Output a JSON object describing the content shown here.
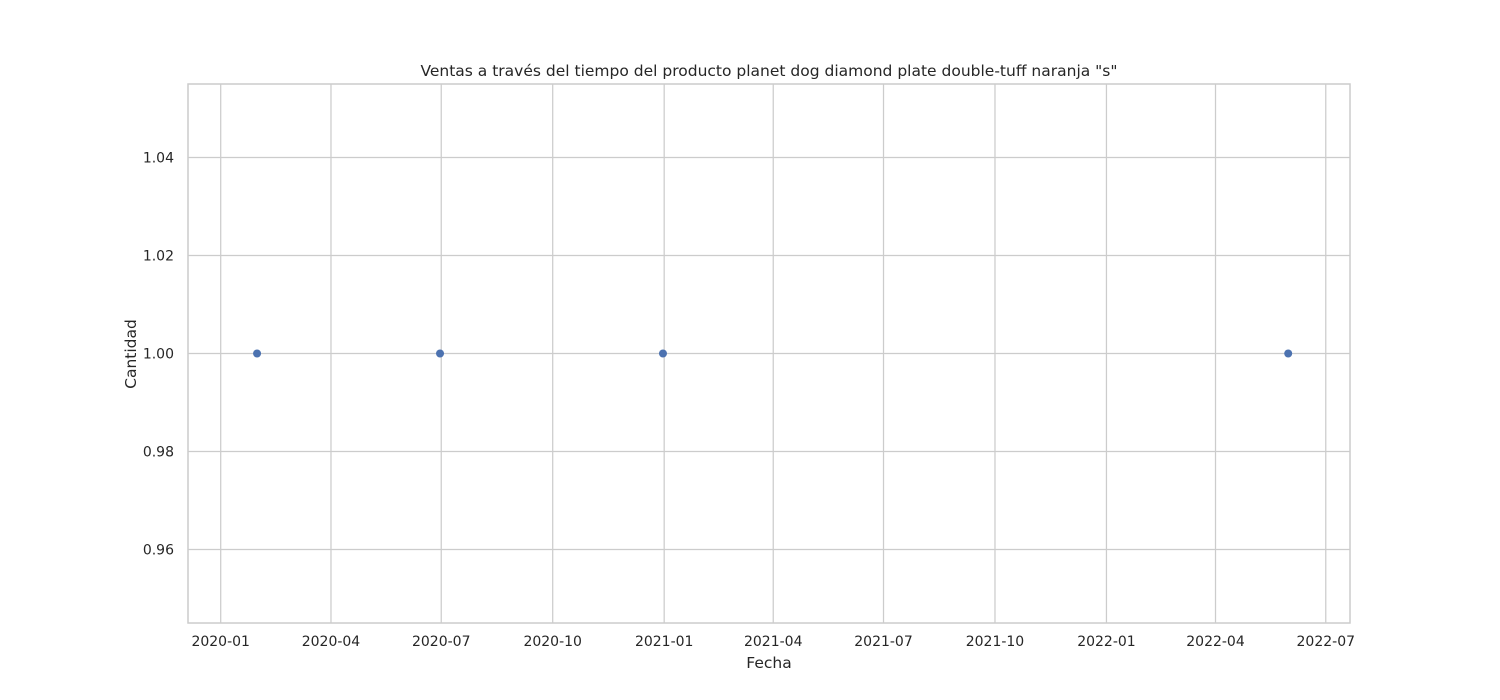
{
  "chart_data": {
    "type": "scatter",
    "title": "Ventas a través del tiempo del producto planet dog diamond plate double-tuff naranja \"s\"",
    "xlabel": "Fecha",
    "ylabel": "Cantidad",
    "x_type": "date",
    "xlim": [
      "2019-12-05",
      "2022-07-21"
    ],
    "ylim": [
      0.945,
      1.055
    ],
    "x_ticks": [
      "2020-01-01",
      "2020-04-01",
      "2020-07-01",
      "2020-10-01",
      "2021-01-01",
      "2021-04-01",
      "2021-07-01",
      "2021-10-01",
      "2022-01-01",
      "2022-04-01",
      "2022-07-01"
    ],
    "x_tick_labels": [
      "2020-01",
      "2020-04",
      "2020-07",
      "2020-10",
      "2021-01",
      "2021-04",
      "2021-07",
      "2021-10",
      "2022-01",
      "2022-04",
      "2022-07"
    ],
    "y_ticks": [
      0.96,
      0.98,
      1.0,
      1.02,
      1.04
    ],
    "y_tick_labels": [
      "0.96",
      "0.98",
      "1.00",
      "1.02",
      "1.04"
    ],
    "grid": true,
    "marker_color": "#4c72b0",
    "series": [
      {
        "x": [
          "2020-01-31",
          "2020-06-30",
          "2020-12-31",
          "2022-05-31"
        ],
        "y": [
          1,
          1,
          1,
          1
        ]
      }
    ]
  }
}
